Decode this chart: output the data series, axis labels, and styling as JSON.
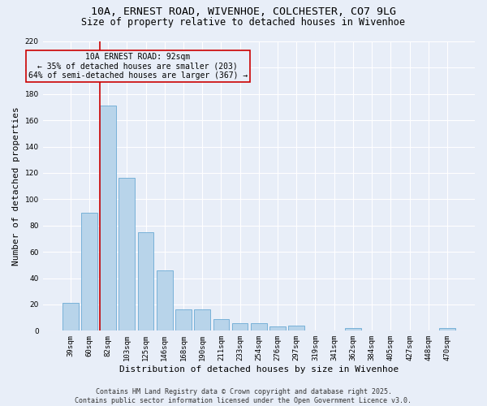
{
  "title_line1": "10A, ERNEST ROAD, WIVENHOE, COLCHESTER, CO7 9LG",
  "title_line2": "Size of property relative to detached houses in Wivenhoe",
  "xlabel": "Distribution of detached houses by size in Wivenhoe",
  "ylabel": "Number of detached properties",
  "categories": [
    "39sqm",
    "60sqm",
    "82sqm",
    "103sqm",
    "125sqm",
    "146sqm",
    "168sqm",
    "190sqm",
    "211sqm",
    "233sqm",
    "254sqm",
    "276sqm",
    "297sqm",
    "319sqm",
    "341sqm",
    "362sqm",
    "384sqm",
    "405sqm",
    "427sqm",
    "448sqm",
    "470sqm"
  ],
  "values": [
    21,
    90,
    171,
    116,
    75,
    46,
    16,
    16,
    9,
    6,
    6,
    3,
    4,
    0,
    0,
    2,
    0,
    0,
    0,
    0,
    2
  ],
  "bar_color": "#b8d4ea",
  "bar_edgecolor": "#6aaad4",
  "vline_color": "#cc0000",
  "vline_index": 2,
  "annotation_text": "10A ERNEST ROAD: 92sqm\n← 35% of detached houses are smaller (203)\n64% of semi-detached houses are larger (367) →",
  "annotation_box_edgecolor": "#cc0000",
  "ylim": [
    0,
    220
  ],
  "yticks": [
    0,
    20,
    40,
    60,
    80,
    100,
    120,
    140,
    160,
    180,
    200,
    220
  ],
  "background_color": "#e8eef8",
  "grid_color": "#ffffff",
  "footer_line1": "Contains HM Land Registry data © Crown copyright and database right 2025.",
  "footer_line2": "Contains public sector information licensed under the Open Government Licence v3.0.",
  "title_fontsize": 9.5,
  "subtitle_fontsize": 8.5,
  "ylabel_fontsize": 8,
  "xlabel_fontsize": 8,
  "tick_fontsize": 6.5,
  "annotation_fontsize": 7,
  "footer_fontsize": 6
}
